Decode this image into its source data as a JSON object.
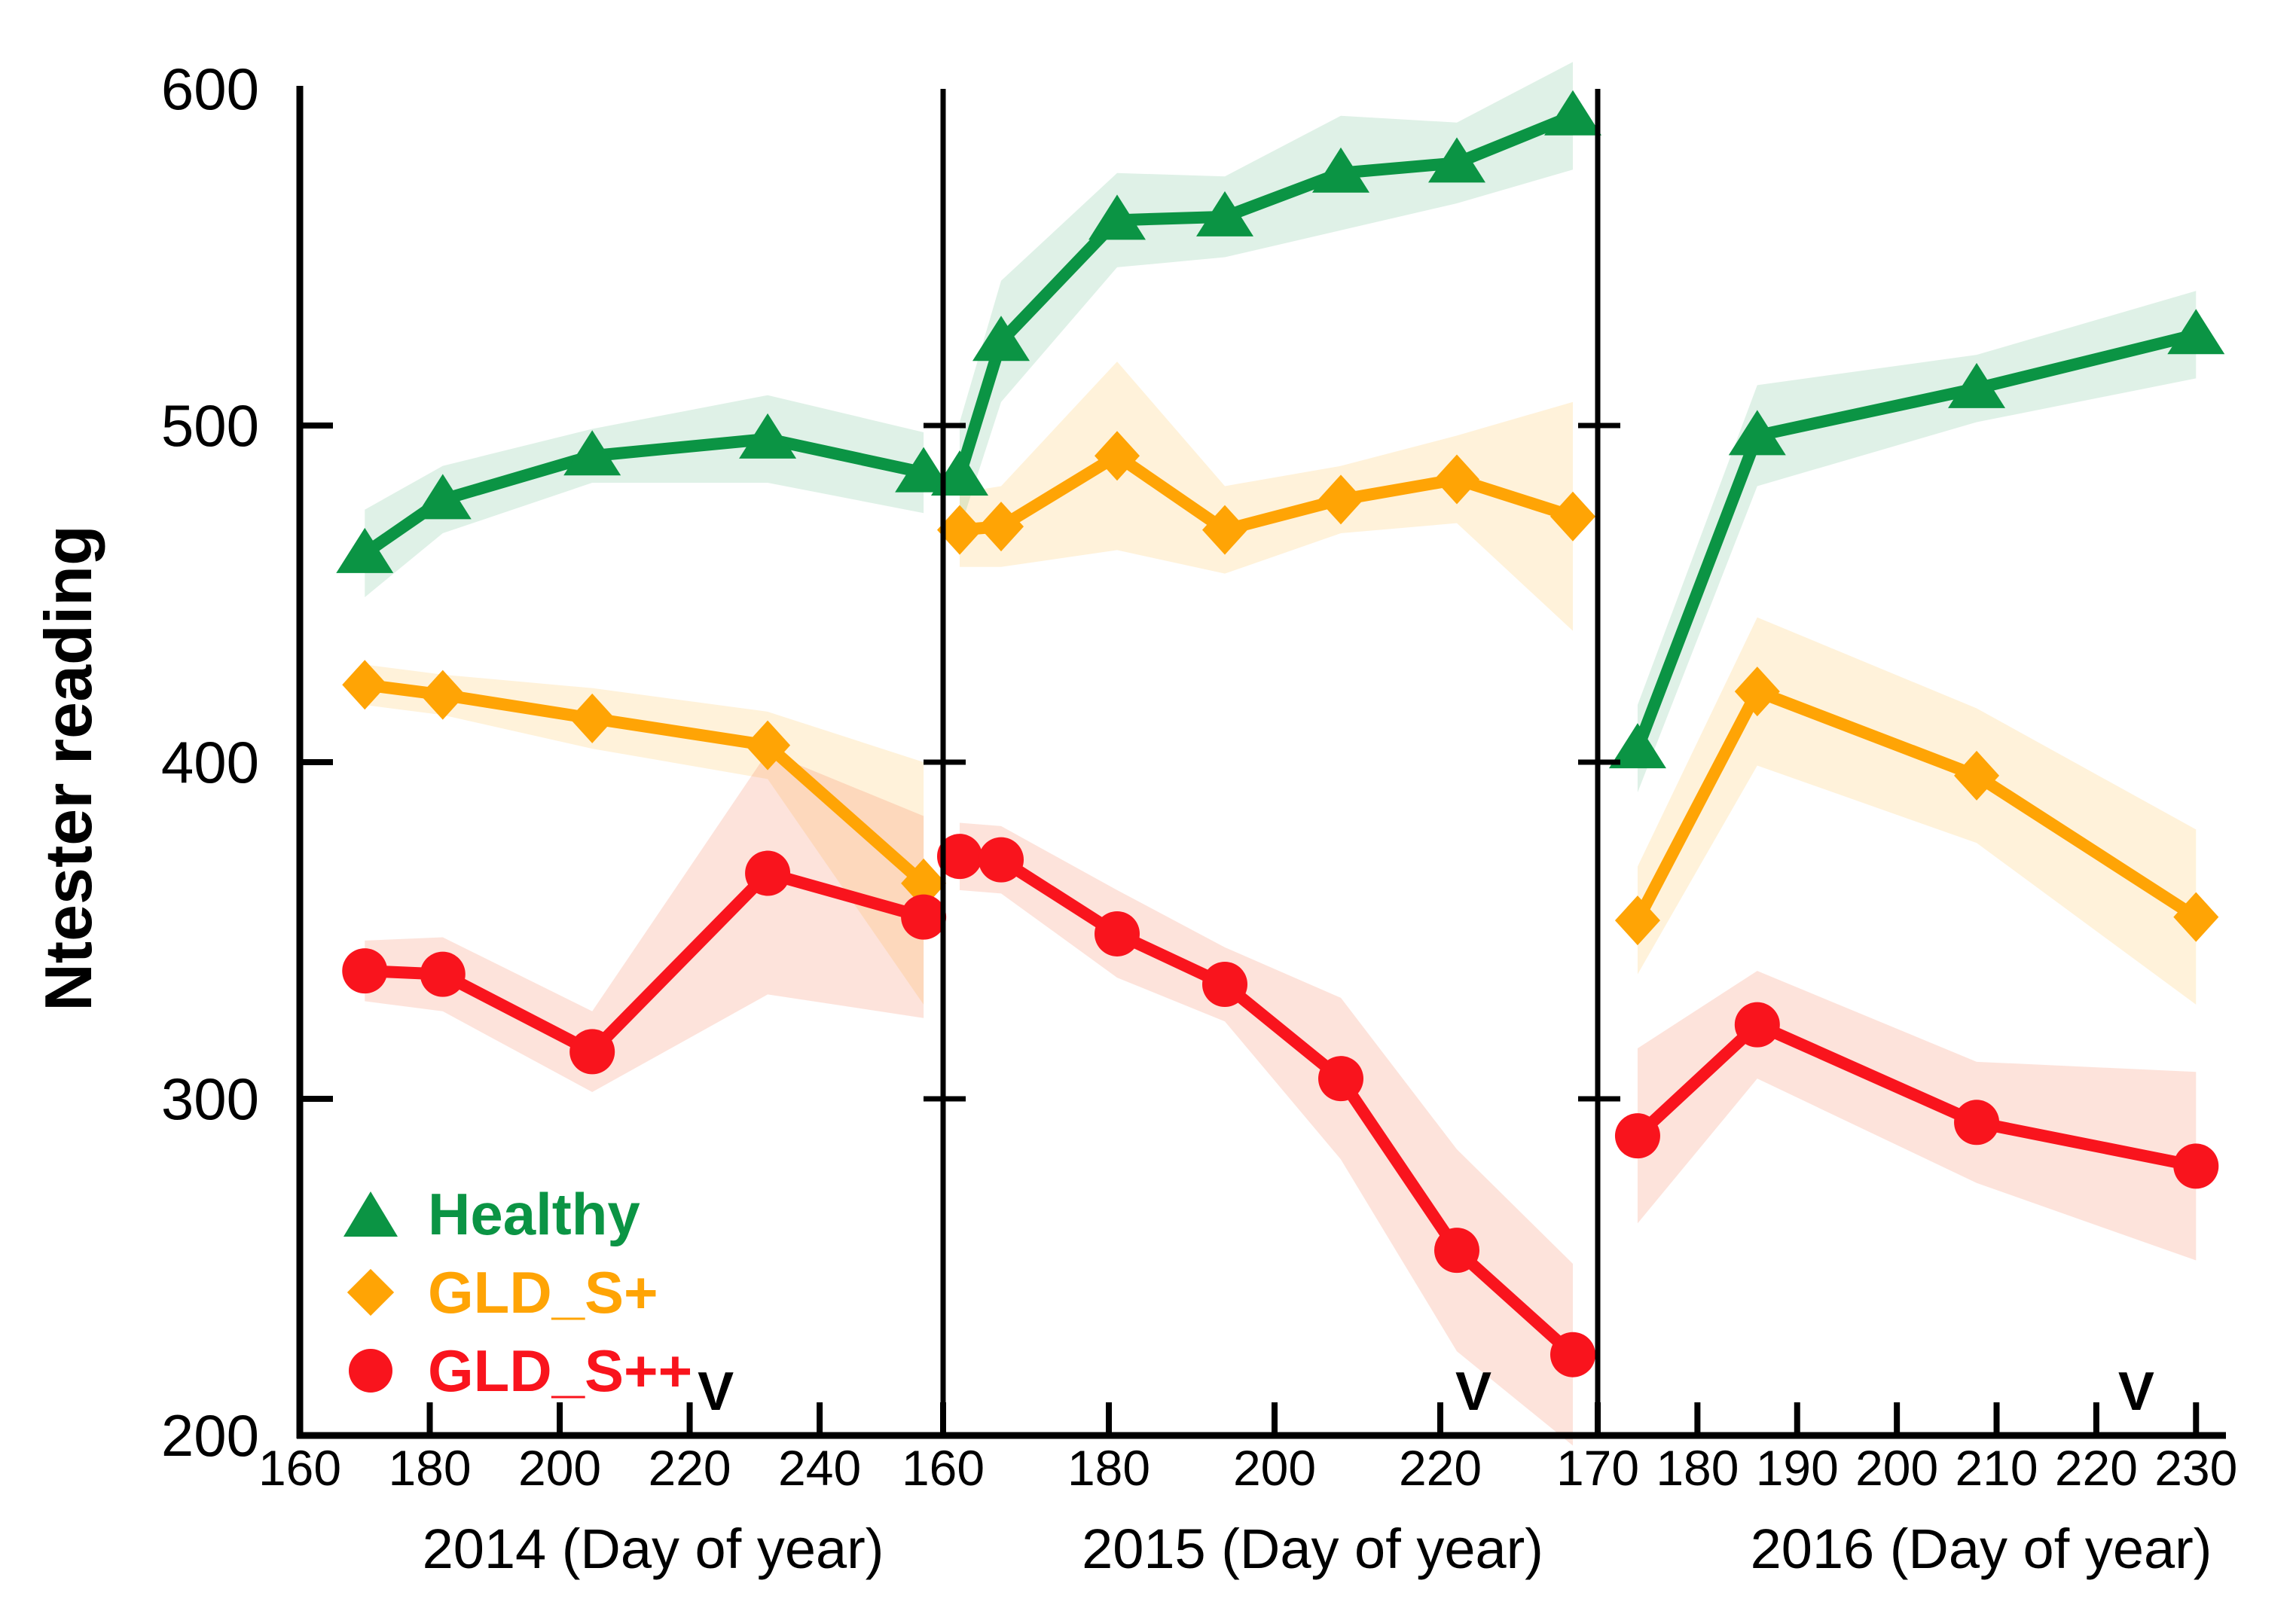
{
  "chart_data": {
    "type": "line",
    "title": "",
    "ylabel": "Ntester reading",
    "ylim": [
      200,
      600
    ],
    "yticks": [
      200,
      300,
      400,
      500,
      600
    ],
    "grid": false,
    "legend_position": "lower-left-first-panel",
    "v_label": "V",
    "legend": [
      {
        "label": "Healthy",
        "marker": "triangle",
        "color": "#0B9444",
        "band_color": "rgba(11,148,68,0.13)"
      },
      {
        "label": "GLD_S+",
        "marker": "diamond",
        "color": "#FFA405",
        "band_color": "rgba(255,165,5,0.15)"
      },
      {
        "label": "GLD_S++",
        "marker": "circle",
        "color": "#F9141D",
        "band_color": "rgba(245,80,30,0.16)"
      }
    ],
    "panels": [
      {
        "xlabel": "2014 (Day of year)",
        "xlim": [
          160,
          259
        ],
        "xticks": [
          160,
          180,
          200,
          220,
          240
        ],
        "v_day": 224,
        "series": [
          {
            "name": "Healthy",
            "days": [
              170,
              182,
              205,
              232,
              256
            ],
            "values": [
              462,
              478,
              491,
              496,
              486
            ],
            "band_halfwidth": [
              13,
              10,
              8,
              13,
              12
            ]
          },
          {
            "name": "GLD_S+",
            "days": [
              170,
              182,
              205,
              232,
              256
            ],
            "values": [
              423,
              420,
              413,
              405,
              364
            ],
            "band_halfwidth": [
              6,
              6,
              9,
              10,
              36
            ]
          },
          {
            "name": "GLD_S++",
            "days": [
              170,
              182,
              205,
              232,
              256
            ],
            "values": [
              338,
              337,
              314,
              367,
              354
            ],
            "band_halfwidth": [
              9,
              11,
              12,
              36,
              30
            ]
          }
        ]
      },
      {
        "xlabel": "2015 (Day of year)",
        "xlim": [
          160,
          239
        ],
        "xticks": [
          160,
          180,
          200,
          220
        ],
        "v_day": 224,
        "series": [
          {
            "name": "Healthy",
            "days": [
              162,
              167,
              181,
              194,
              208,
              222,
              236
            ],
            "values": [
              485,
              525,
              561,
              562,
              575,
              578,
              592
            ],
            "band_halfwidth": [
              16,
              18,
              14,
              12,
              17,
              12,
              16
            ]
          },
          {
            "name": "GLD_S+",
            "days": [
              162,
              167,
              181,
              194,
              208,
              222,
              236
            ],
            "values": [
              469,
              470,
              491,
              469,
              478,
              484,
              473
            ],
            "band_halfwidth": [
              11,
              12,
              28,
              13,
              10,
              13,
              34
            ]
          },
          {
            "name": "GLD_S++",
            "days": [
              162,
              167,
              181,
              194,
              208,
              222,
              236
            ],
            "values": [
              372,
              371,
              349,
              334,
              306,
              255,
              224
            ],
            "band_halfwidth": [
              10,
              10,
              13,
              11,
              24,
              30,
              27
            ]
          }
        ]
      },
      {
        "xlabel": "2016 (Day of year)",
        "xlim": [
          170,
          233
        ],
        "xticks": [
          170,
          180,
          190,
          200,
          210,
          220,
          230
        ],
        "v_day": 224,
        "series": [
          {
            "name": "Healthy",
            "days": [
              174,
              186,
              208,
              230
            ],
            "values": [
              404,
              497,
              511,
              527
            ],
            "band_halfwidth": [
              13,
              15,
              10,
              13
            ]
          },
          {
            "name": "GLD_S+",
            "days": [
              174,
              186,
              208,
              230
            ],
            "values": [
              353,
              421,
              396,
              354
            ],
            "band_halfwidth": [
              16,
              22,
              20,
              26
            ]
          },
          {
            "name": "GLD_S++",
            "days": [
              174,
              186,
              208,
              230
            ],
            "values": [
              289,
              322,
              293,
              280
            ],
            "band_halfwidth": [
              26,
              16,
              18,
              28
            ]
          }
        ]
      }
    ]
  }
}
